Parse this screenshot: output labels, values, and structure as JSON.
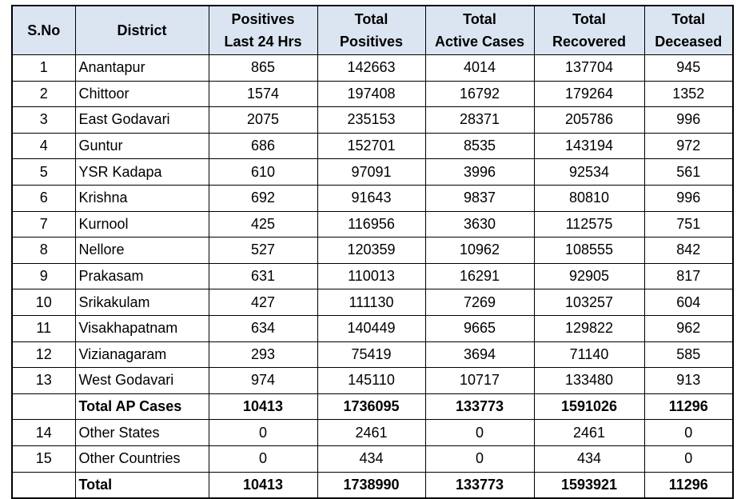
{
  "table": {
    "header": [
      [
        "S.No"
      ],
      [
        "District"
      ],
      [
        "Positives",
        "Last 24 Hrs"
      ],
      [
        "Total",
        "Positives"
      ],
      [
        "Total",
        "Active Cases"
      ],
      [
        "Total",
        "Recovered"
      ],
      [
        "Total",
        "Deceased"
      ]
    ],
    "rows": [
      {
        "sno": 1,
        "district": "Anantapur",
        "values": [
          865,
          142663,
          4014,
          137704,
          945
        ]
      },
      {
        "sno": 2,
        "district": "Chittoor",
        "values": [
          1574,
          197408,
          16792,
          179264,
          1352
        ]
      },
      {
        "sno": 3,
        "district": "East Godavari",
        "values": [
          2075,
          235153,
          28371,
          205786,
          996
        ]
      },
      {
        "sno": 4,
        "district": "Guntur",
        "values": [
          686,
          152701,
          8535,
          143194,
          972
        ]
      },
      {
        "sno": 5,
        "district": "YSR Kadapa",
        "values": [
          610,
          97091,
          3996,
          92534,
          561
        ]
      },
      {
        "sno": 6,
        "district": "Krishna",
        "values": [
          692,
          91643,
          9837,
          80810,
          996
        ]
      },
      {
        "sno": 7,
        "district": "Kurnool",
        "values": [
          425,
          116956,
          3630,
          112575,
          751
        ]
      },
      {
        "sno": 8,
        "district": "Nellore",
        "values": [
          527,
          120359,
          10962,
          108555,
          842
        ]
      },
      {
        "sno": 9,
        "district": "Prakasam",
        "values": [
          631,
          110013,
          16291,
          92905,
          817
        ]
      },
      {
        "sno": 10,
        "district": "Srikakulam",
        "values": [
          427,
          111130,
          7269,
          103257,
          604
        ]
      },
      {
        "sno": 11,
        "district": "Visakhapatnam",
        "values": [
          634,
          140449,
          9665,
          129822,
          962
        ]
      },
      {
        "sno": 12,
        "district": "Vizianagaram",
        "values": [
          293,
          75419,
          3694,
          71140,
          585
        ]
      },
      {
        "sno": 13,
        "district": "West Godavari",
        "values": [
          974,
          145110,
          10717,
          133480,
          913
        ]
      },
      {
        "district": "Total AP Cases",
        "values": [
          10413,
          1736095,
          133773,
          1591026,
          11296
        ],
        "bold": true
      },
      {
        "sno": 14,
        "district": "Other States",
        "values": [
          0,
          2461,
          0,
          2461,
          0
        ]
      },
      {
        "sno": 15,
        "district": "Other Countries",
        "values": [
          0,
          434,
          0,
          434,
          0
        ]
      },
      {
        "district": "Total",
        "values": [
          10413,
          1738990,
          133773,
          1593921,
          11296
        ],
        "bold": true
      }
    ]
  }
}
